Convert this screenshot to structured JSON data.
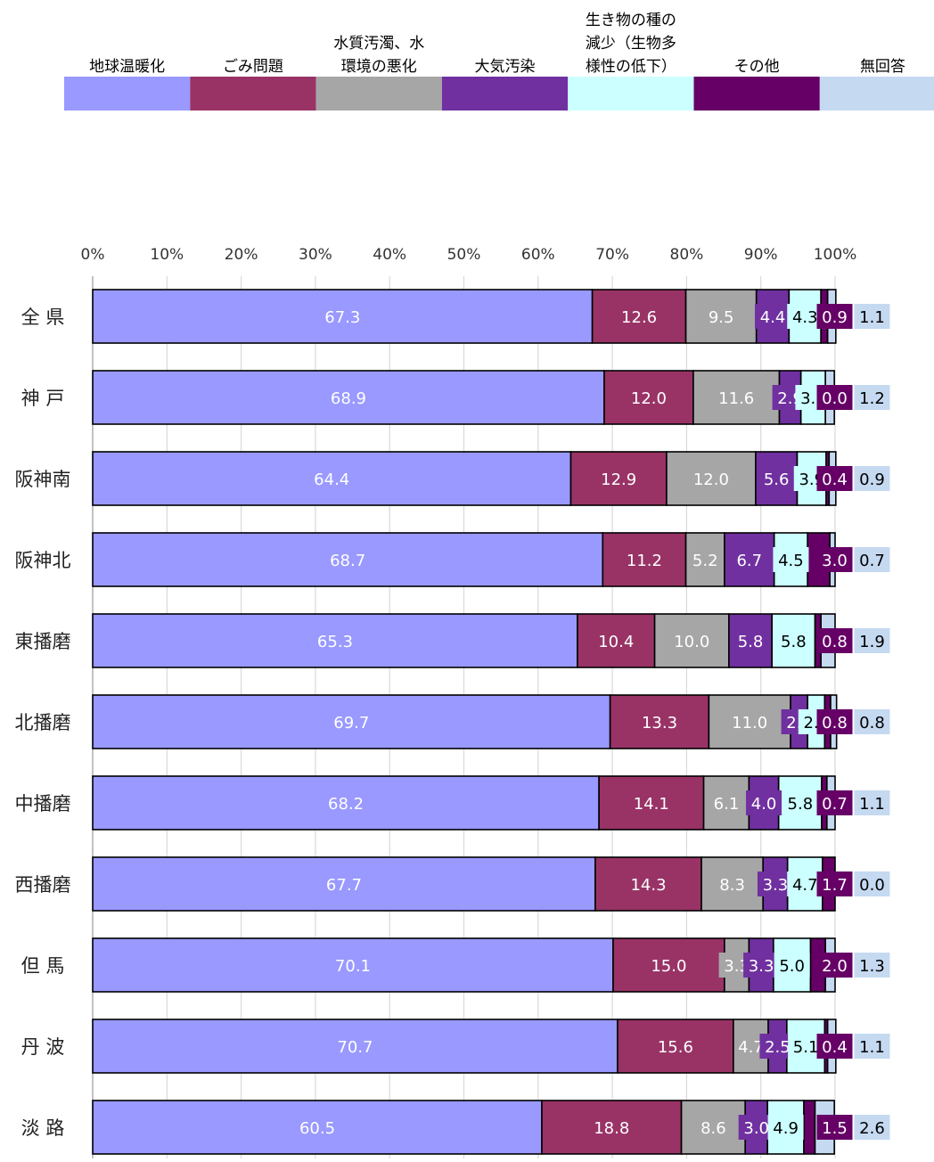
{
  "chart_data": {
    "type": "bar",
    "orientation": "horizontal",
    "stacked": true,
    "unit": "%",
    "xlim": [
      0,
      100
    ],
    "xticks": [
      "0%",
      "10%",
      "20%",
      "30%",
      "40%",
      "50%",
      "60%",
      "70%",
      "80%",
      "90%",
      "100%"
    ],
    "grid": true,
    "legend_position": "top",
    "categories": [
      "全 県",
      "神 戸",
      "阪神南",
      "阪神北",
      "東播磨",
      "北播磨",
      "中播磨",
      "西播磨",
      "但 馬",
      "丹 波",
      "淡 路"
    ],
    "series": [
      {
        "name": "地球温暖化",
        "legend_lines": [
          "地球温暖化"
        ],
        "color": "#9999ff",
        "text_color": "#ffffff",
        "values": [
          67.3,
          68.9,
          64.4,
          68.7,
          65.3,
          69.7,
          68.2,
          67.7,
          70.1,
          70.7,
          60.5
        ]
      },
      {
        "name": "ごみ問題",
        "legend_lines": [
          "ごみ問題"
        ],
        "color": "#993366",
        "text_color": "#ffffff",
        "values": [
          12.6,
          12.0,
          12.9,
          11.2,
          10.4,
          13.3,
          14.1,
          14.3,
          15.0,
          15.6,
          18.8
        ]
      },
      {
        "name": "水質汚濁、水環境の悪化",
        "legend_lines": [
          "水質汚濁、水",
          "環境の悪化"
        ],
        "color": "#a6a6a6",
        "text_color": "#ffffff",
        "values": [
          9.5,
          11.6,
          12.0,
          5.2,
          10.0,
          11.0,
          6.1,
          8.3,
          3.3,
          4.7,
          8.6
        ]
      },
      {
        "name": "大気汚染",
        "legend_lines": [
          "大気汚染"
        ],
        "color": "#7030a0",
        "text_color": "#ffffff",
        "values": [
          4.4,
          2.9,
          5.6,
          6.7,
          5.8,
          2.3,
          4.0,
          3.3,
          3.3,
          2.5,
          3.0
        ]
      },
      {
        "name": "生き物の種の減少（生物多様性の低下）",
        "legend_lines": [
          "生き物の種の",
          "減少（生物多",
          "様性の低下）"
        ],
        "color": "#ccffff",
        "text_color": "#000000",
        "values": [
          4.3,
          3.3,
          3.9,
          4.5,
          5.8,
          2.3,
          5.8,
          4.7,
          5.0,
          5.1,
          4.9
        ]
      },
      {
        "name": "その他",
        "legend_lines": [
          "その他"
        ],
        "color": "#660066",
        "text_color": "#ffffff",
        "values": [
          0.9,
          0.0,
          0.4,
          3.0,
          0.8,
          0.8,
          0.7,
          1.7,
          2.0,
          0.4,
          1.5
        ]
      },
      {
        "name": "無回答",
        "legend_lines": [
          "無回答"
        ],
        "color": "#c5d9f1",
        "text_color": "#000000",
        "values": [
          1.1,
          1.2,
          0.9,
          0.7,
          1.9,
          0.8,
          1.1,
          0.0,
          1.3,
          1.1,
          2.6
        ]
      }
    ]
  }
}
